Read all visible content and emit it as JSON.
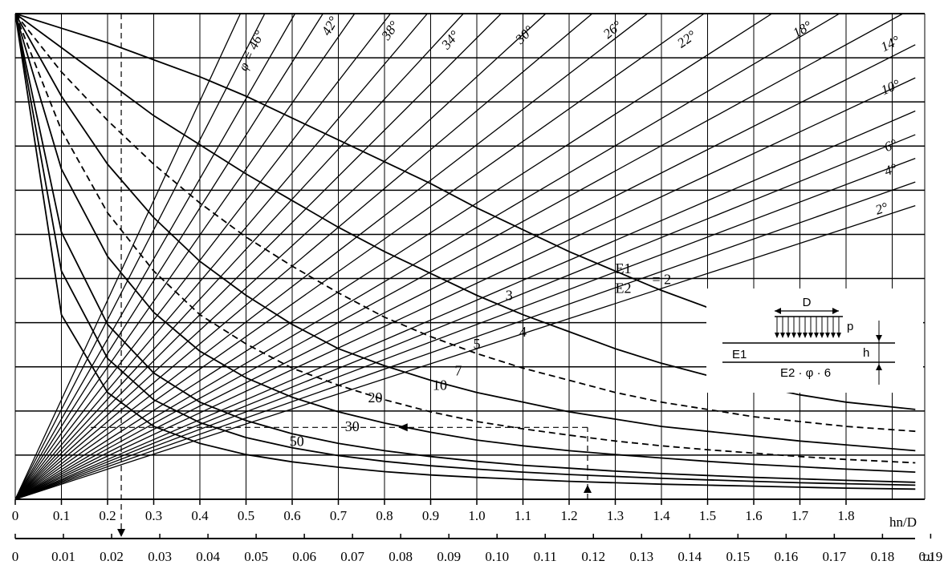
{
  "chart_data": {
    "type": "line",
    "title": "",
    "xlabel": "hn/D",
    "x2label": "τu",
    "xlim": [
      0,
      1.95
    ],
    "ylim": [
      0,
      1
    ],
    "x_ticks": [
      "0",
      "0.1",
      "0.2",
      "0.3",
      "0.4",
      "0.5",
      "0.6",
      "0.7",
      "0.8",
      "0.9",
      "1.0",
      "1.1",
      "1.2",
      "1.3",
      "1.4",
      "1.5",
      "1.6",
      "1.7",
      "1.8"
    ],
    "x2_ticks": [
      "0",
      "0.01",
      "0.02",
      "0.03",
      "0.04",
      "0.05",
      "0.06",
      "0.07",
      "0.08",
      "0.09",
      "0.10",
      "0.11",
      "0.12",
      "0.13",
      "0.14",
      "0.15",
      "0.16",
      "0.17",
      "0.18",
      "0.19"
    ],
    "grid": true,
    "ratio_family": {
      "name_num": "E1",
      "name_den": "E2",
      "series": [
        {
          "name": "2",
          "x": [
            0,
            0.1,
            0.2,
            0.3,
            0.4,
            0.5,
            0.6,
            0.7,
            0.8,
            0.9,
            1.0,
            1.1,
            1.2,
            1.3,
            1.4,
            1.5,
            1.6,
            1.7,
            1.8,
            1.95
          ],
          "y": [
            1.0,
            0.97,
            0.94,
            0.905,
            0.87,
            0.83,
            0.785,
            0.74,
            0.695,
            0.65,
            0.6,
            0.555,
            0.51,
            0.47,
            0.43,
            0.395,
            0.365,
            0.34,
            0.32,
            0.3
          ],
          "labelled": true
        },
        {
          "name": "3",
          "x": [
            0,
            0.1,
            0.2,
            0.3,
            0.4,
            0.5,
            0.6,
            0.7,
            0.8,
            0.9,
            1.0,
            1.1,
            1.2,
            1.3,
            1.4,
            1.5,
            1.6,
            1.7,
            1.8,
            1.95
          ],
          "y": [
            1.0,
            0.93,
            0.86,
            0.79,
            0.73,
            0.67,
            0.615,
            0.56,
            0.51,
            0.465,
            0.42,
            0.38,
            0.345,
            0.31,
            0.28,
            0.255,
            0.235,
            0.215,
            0.2,
            0.185
          ],
          "labelled": true
        },
        {
          "name": "4",
          "x": [
            0,
            0.1,
            0.2,
            0.3,
            0.4,
            0.5,
            0.6,
            0.7,
            0.8,
            0.9,
            1.0,
            1.1,
            1.2,
            1.3,
            1.4,
            1.5,
            1.6,
            1.7,
            1.8,
            1.95
          ],
          "y": [
            1.0,
            0.88,
            0.78,
            0.69,
            0.61,
            0.54,
            0.48,
            0.425,
            0.375,
            0.335,
            0.3,
            0.27,
            0.245,
            0.22,
            0.2,
            0.185,
            0.17,
            0.16,
            0.15,
            0.14
          ],
          "labelled": true,
          "dashed": true
        },
        {
          "name": "5",
          "x": [
            0,
            0.1,
            0.2,
            0.3,
            0.4,
            0.5,
            0.6,
            0.7,
            0.8,
            0.9,
            1.0,
            1.1,
            1.2,
            1.3,
            1.4,
            1.5,
            1.6,
            1.7,
            1.8,
            1.95
          ],
          "y": [
            1.0,
            0.83,
            0.69,
            0.58,
            0.49,
            0.42,
            0.36,
            0.31,
            0.275,
            0.245,
            0.22,
            0.2,
            0.18,
            0.165,
            0.15,
            0.14,
            0.13,
            0.12,
            0.112,
            0.1
          ],
          "labelled": true
        },
        {
          "name": "7",
          "x": [
            0,
            0.1,
            0.2,
            0.3,
            0.4,
            0.5,
            0.6,
            0.7,
            0.8,
            0.9,
            1.0,
            1.1,
            1.2,
            1.3,
            1.4,
            1.5,
            1.6,
            1.7,
            1.8,
            1.95
          ],
          "y": [
            1.0,
            0.76,
            0.59,
            0.47,
            0.38,
            0.32,
            0.27,
            0.235,
            0.205,
            0.18,
            0.16,
            0.145,
            0.132,
            0.12,
            0.11,
            0.102,
            0.095,
            0.088,
            0.082,
            0.075
          ],
          "labelled": true,
          "dashed": true
        },
        {
          "name": "10",
          "x": [
            0,
            0.1,
            0.2,
            0.3,
            0.4,
            0.5,
            0.6,
            0.7,
            0.8,
            0.9,
            1.0,
            1.1,
            1.2,
            1.3,
            1.4,
            1.5,
            1.6,
            1.7,
            1.8,
            1.95
          ],
          "y": [
            1.0,
            0.68,
            0.5,
            0.385,
            0.305,
            0.25,
            0.21,
            0.18,
            0.157,
            0.138,
            0.122,
            0.11,
            0.1,
            0.092,
            0.085,
            0.078,
            0.072,
            0.067,
            0.062,
            0.056
          ],
          "labelled": true
        },
        {
          "name": "20",
          "x": [
            0,
            0.1,
            0.2,
            0.3,
            0.4,
            0.5,
            0.6,
            0.7,
            0.8,
            0.9,
            1.0,
            1.1,
            1.2,
            1.3,
            1.4,
            1.5,
            1.6,
            1.7,
            1.8,
            1.95
          ],
          "y": [
            1.0,
            0.55,
            0.36,
            0.26,
            0.2,
            0.162,
            0.135,
            0.115,
            0.1,
            0.088,
            0.078,
            0.07,
            0.064,
            0.058,
            0.053,
            0.049,
            0.045,
            0.042,
            0.039,
            0.035
          ],
          "labelled": true
        },
        {
          "name": "30",
          "x": [
            0,
            0.1,
            0.2,
            0.3,
            0.4,
            0.5,
            0.6,
            0.7,
            0.8,
            0.9,
            1.0,
            1.1,
            1.2,
            1.3,
            1.4,
            1.5,
            1.6,
            1.7,
            1.8,
            1.95
          ],
          "y": [
            1.0,
            0.47,
            0.29,
            0.205,
            0.158,
            0.127,
            0.106,
            0.09,
            0.078,
            0.069,
            0.062,
            0.056,
            0.051,
            0.047,
            0.043,
            0.04,
            0.037,
            0.034,
            0.032,
            0.029
          ],
          "labelled": true
        },
        {
          "name": "50",
          "x": [
            0,
            0.1,
            0.2,
            0.3,
            0.4,
            0.5,
            0.6,
            0.7,
            0.8,
            0.9,
            1.0,
            1.1,
            1.2,
            1.3,
            1.4,
            1.5,
            1.6,
            1.7,
            1.8,
            1.95
          ],
          "y": [
            1.0,
            0.38,
            0.22,
            0.15,
            0.115,
            0.092,
            0.077,
            0.066,
            0.057,
            0.05,
            0.045,
            0.041,
            0.037,
            0.034,
            0.031,
            0.029,
            0.027,
            0.025,
            0.023,
            0.021
          ],
          "labelled": true
        }
      ]
    },
    "phi_family": {
      "name": "φ",
      "note": "straight rays through origin, y = s·x",
      "rays": [
        {
          "label": "φ = 46°",
          "slope": 2.05,
          "labelled": true
        },
        {
          "label": "",
          "slope": 1.85
        },
        {
          "label": "42°",
          "slope": 1.65,
          "labelled": true
        },
        {
          "label": "",
          "slope": 1.5
        },
        {
          "label": "38°",
          "slope": 1.36,
          "labelled": true
        },
        {
          "label": "",
          "slope": 1.23
        },
        {
          "label": "34°",
          "slope": 1.12,
          "labelled": true
        },
        {
          "label": "",
          "slope": 1.03
        },
        {
          "label": "30°",
          "slope": 0.95,
          "labelled": true
        },
        {
          "label": "",
          "slope": 0.87
        },
        {
          "label": "26°",
          "slope": 0.8,
          "labelled": true
        },
        {
          "label": "",
          "slope": 0.73
        },
        {
          "label": "22°",
          "slope": 0.67,
          "labelled": true
        },
        {
          "label": "",
          "slope": 0.61
        },
        {
          "label": "18°",
          "slope": 0.56,
          "labelled": true
        },
        {
          "label": "",
          "slope": 0.52
        },
        {
          "label": "14°",
          "slope": 0.48,
          "labelled": true
        },
        {
          "label": "",
          "slope": 0.445
        },
        {
          "label": "10°",
          "slope": 0.41,
          "labelled": true
        },
        {
          "label": "",
          "slope": 0.385
        },
        {
          "label": "6°",
          "slope": 0.36,
          "labelled": true
        },
        {
          "label": "4°",
          "slope": 0.335,
          "labelled": true
        },
        {
          "label": "2°",
          "slope": 0.31,
          "labelled": true
        }
      ]
    },
    "example_path": {
      "dashed": true,
      "start_x": 1.24,
      "start_tau": 0.125,
      "y": 0.148,
      "end_x": 0.155,
      "result_tau": 0.022
    },
    "inset": {
      "load_width": "D",
      "load": "p",
      "layer1": "E1",
      "layer2": "E2 · φ · 6",
      "thickness": "h"
    }
  }
}
